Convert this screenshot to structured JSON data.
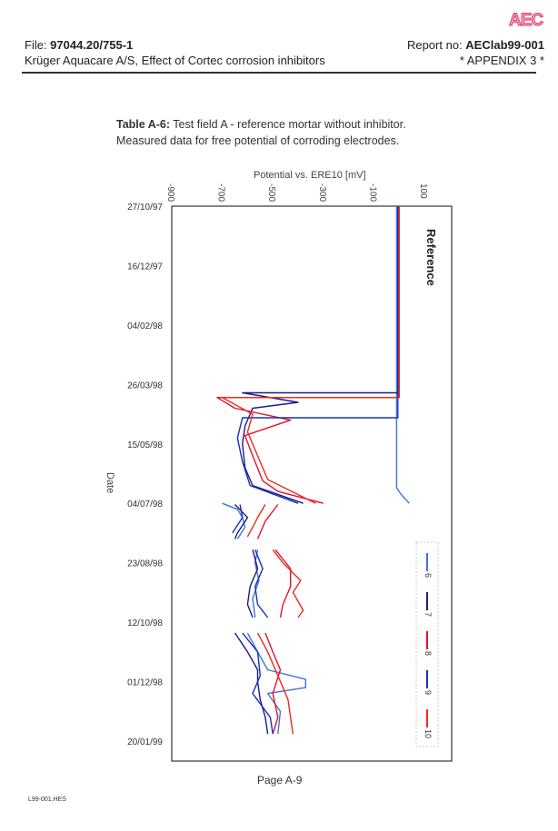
{
  "header": {
    "logo": "AEC",
    "file_label": "File: ",
    "file_no": "97044.20/755-1",
    "report_label": "Report no: ",
    "report_no": "AEClab99-001",
    "subtitle": "Krüger Aquacare A/S, Effect of Cortec corrosion inhibitors",
    "appendix": "* APPENDIX 3 *"
  },
  "caption": {
    "table_label": "Table A-6:",
    "title": " Test field A - reference mortar without inhibitor.",
    "line2": "Measured data for free potential of corroding electrodes."
  },
  "footer": {
    "page": "Page A-9",
    "doc_code": "L99-001.HES"
  },
  "chart_data": {
    "type": "line",
    "orientation": "rotated-90 (potential on horizontal axis, date on vertical axis running downward)",
    "title": "",
    "xlabel": "Potential vs. ERE10  [mV]",
    "ylabel": "Date",
    "annotation": "Reference",
    "xlim": [
      -900,
      210
    ],
    "xticks": [
      -900,
      -700,
      -500,
      -300,
      -100,
      100
    ],
    "xtick_labels": [
      "-900",
      "-700",
      "-500",
      "-300",
      "-100",
      "100"
    ],
    "y_unit": "days since 27/10/97",
    "ylim": [
      0,
      467
    ],
    "yticks": [
      0,
      50,
      100,
      150,
      200,
      250,
      300,
      350,
      400,
      450
    ],
    "ytick_labels": [
      "27/10/97",
      "16/12/97",
      "04/02/98",
      "26/03/98",
      "15/05/98",
      "04/07/98",
      "23/08/98",
      "12/10/98",
      "01/12/98",
      "20/01/99"
    ],
    "grid": false,
    "legend_placement": "bottom-right",
    "series": [
      {
        "name": "6",
        "color": "#3c74da",
        "points": [
          [
            0,
            -10
          ],
          [
            237,
            -10
          ],
          [
            243,
            10
          ],
          [
            250,
            40
          ],
          null,
          [
            250,
            -700
          ],
          [
            255,
            -640
          ],
          [
            262,
            -620
          ],
          [
            270,
            -610
          ],
          [
            280,
            -640
          ],
          null,
          [
            289,
            -560
          ],
          [
            300,
            -570
          ],
          [
            315,
            -555
          ],
          [
            330,
            -580
          ],
          [
            346,
            -570
          ],
          null,
          [
            359,
            -600
          ],
          [
            375,
            -560
          ],
          [
            390,
            -520
          ],
          [
            398,
            -370
          ],
          [
            405,
            -370
          ],
          [
            410,
            -520
          ],
          [
            425,
            -470
          ],
          [
            444,
            -480
          ]
        ]
      },
      {
        "name": "7",
        "color": "#1c1c86",
        "points": [
          [
            0,
            -5
          ],
          [
            157,
            -5
          ],
          [
            157,
            -620
          ],
          [
            165,
            -400
          ],
          [
            170,
            -580
          ],
          [
            185,
            -610
          ],
          [
            200,
            -620
          ],
          [
            220,
            -610
          ],
          [
            235,
            -580
          ],
          [
            250,
            -380
          ],
          null,
          [
            251,
            -650
          ],
          [
            262,
            -600
          ],
          [
            275,
            -640
          ],
          [
            280,
            -650
          ],
          null,
          [
            289,
            -580
          ],
          [
            305,
            -560
          ],
          [
            320,
            -590
          ],
          [
            335,
            -600
          ],
          [
            346,
            -580
          ],
          null,
          [
            359,
            -650
          ],
          [
            375,
            -600
          ],
          [
            390,
            -560
          ],
          [
            400,
            -560
          ],
          [
            415,
            -550
          ],
          [
            430,
            -530
          ],
          [
            444,
            -520
          ]
        ]
      },
      {
        "name": "8",
        "color": "#e8102a",
        "points": [
          [
            0,
            0
          ],
          [
            161,
            0
          ],
          [
            161,
            -720
          ],
          [
            170,
            -650
          ],
          [
            180,
            -430
          ],
          [
            193,
            -610
          ],
          [
            210,
            -580
          ],
          [
            231,
            -540
          ],
          [
            240,
            -480
          ],
          [
            250,
            -300
          ],
          null,
          [
            251,
            -480
          ],
          [
            265,
            -530
          ],
          [
            280,
            -560
          ],
          null,
          [
            289,
            -490
          ],
          [
            305,
            -430
          ],
          [
            320,
            -430
          ],
          [
            335,
            -460
          ],
          [
            346,
            -470
          ],
          null,
          [
            359,
            -530
          ],
          [
            375,
            -500
          ],
          [
            390,
            -470
          ],
          [
            410,
            -500
          ],
          [
            430,
            -480
          ],
          [
            444,
            -500
          ]
        ]
      },
      {
        "name": "9",
        "color": "#1530c0",
        "points": [
          [
            0,
            -5
          ],
          [
            178,
            -5
          ],
          [
            178,
            -620
          ],
          [
            195,
            -640
          ],
          [
            215,
            -620
          ],
          [
            235,
            -590
          ],
          [
            250,
            -400
          ],
          null,
          [
            251,
            -630
          ],
          [
            262,
            -620
          ],
          [
            275,
            -660
          ],
          null,
          [
            289,
            -570
          ],
          [
            305,
            -540
          ],
          [
            320,
            -570
          ],
          [
            335,
            -560
          ],
          [
            346,
            -520
          ],
          null,
          [
            359,
            -620
          ],
          [
            375,
            -560
          ],
          [
            395,
            -550
          ],
          [
            410,
            -580
          ],
          [
            430,
            -510
          ],
          [
            444,
            -500
          ]
        ]
      },
      {
        "name": "10",
        "color": "#f02a18",
        "points": [
          [
            0,
            0
          ],
          [
            161,
            0
          ],
          [
            161,
            -700
          ],
          [
            175,
            -580
          ],
          [
            190,
            -600
          ],
          [
            210,
            -560
          ],
          [
            230,
            -520
          ],
          [
            250,
            -330
          ],
          null,
          [
            251,
            -530
          ],
          [
            262,
            -560
          ],
          [
            278,
            -600
          ],
          null,
          [
            289,
            -500
          ],
          [
            300,
            -460
          ],
          [
            315,
            -390
          ],
          [
            325,
            -420
          ],
          [
            340,
            -380
          ],
          [
            346,
            -400
          ],
          null,
          [
            359,
            -560
          ],
          [
            375,
            -520
          ],
          [
            395,
            -480
          ],
          [
            415,
            -440
          ],
          [
            430,
            -430
          ],
          [
            444,
            -420
          ]
        ]
      }
    ]
  }
}
